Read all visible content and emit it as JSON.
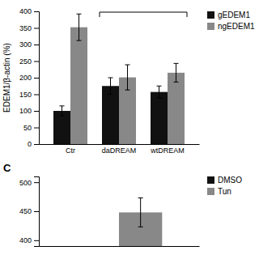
{
  "chart_data": [
    {
      "type": "bar",
      "categories": [
        "Ctr",
        "daDREAM",
        "wtDREAM"
      ],
      "series": [
        {
          "name": "gEDEM1",
          "color": "#111111",
          "values": [
            100,
            175,
            157
          ],
          "errors": [
            15,
            25,
            18
          ]
        },
        {
          "name": "ngEDEM1",
          "color": "#888888",
          "values": [
            352,
            201,
            215
          ],
          "errors": [
            40,
            38,
            28
          ]
        }
      ],
      "ylabel": "EDEM1/β-actin (%)",
      "ylim": [
        0,
        400
      ],
      "yticks": [
        0,
        50,
        100,
        150,
        200,
        250,
        300,
        350,
        400
      ],
      "grid": false,
      "legend": "right"
    },
    {
      "type": "bar",
      "title": "C",
      "categories": [
        null
      ],
      "series": [
        {
          "name": "DMSO",
          "color": "#111111",
          "values": [
            null
          ]
        },
        {
          "name": "Tun",
          "color": "#888888",
          "values": [
            448
          ],
          "errors": [
            25
          ]
        }
      ],
      "ylim": [
        390,
        510
      ],
      "yticks": [
        400,
        450,
        500
      ],
      "grid": false,
      "legend": "right",
      "tick_labels": "y"
    }
  ]
}
